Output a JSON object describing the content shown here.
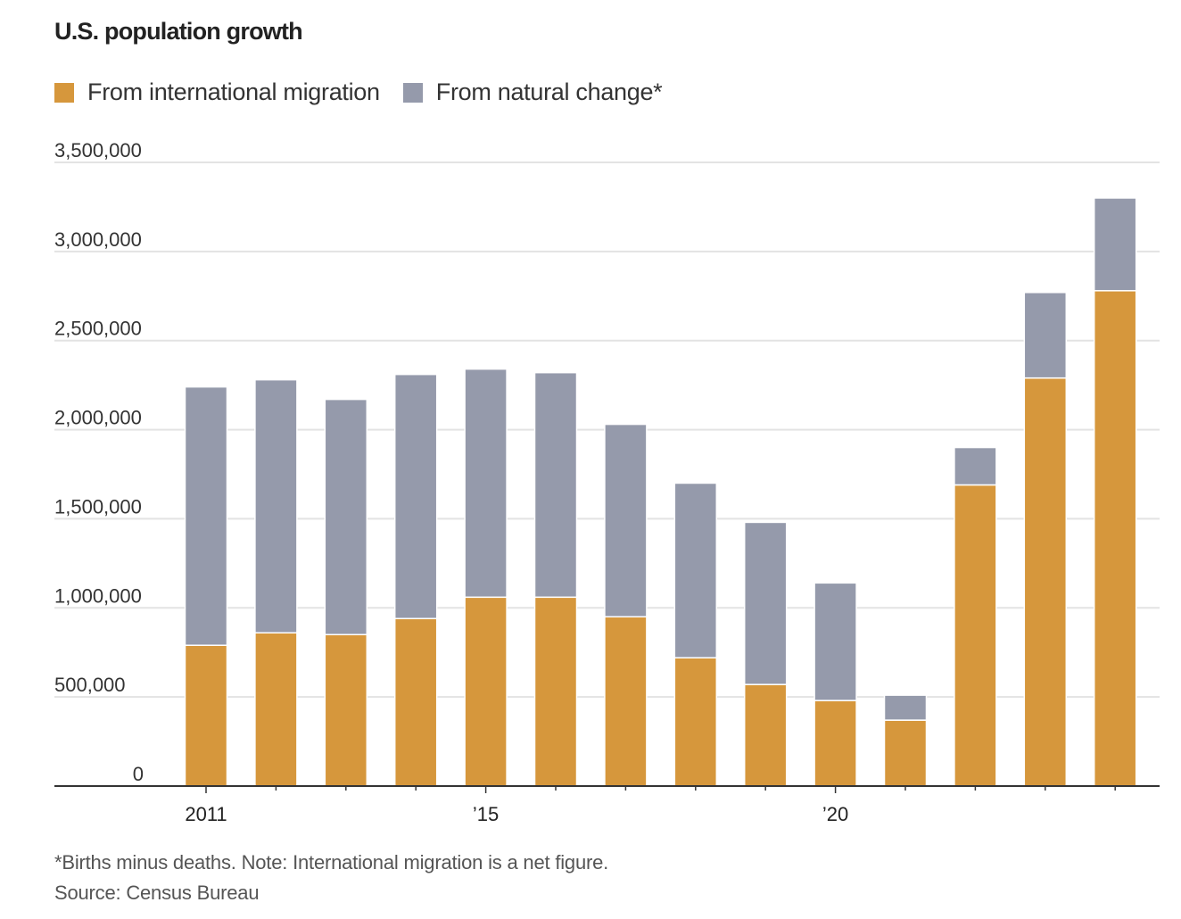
{
  "title": "U.S. population growth",
  "legend": [
    {
      "label": "From international migration",
      "color": "#d6973c"
    },
    {
      "label": "From natural change*",
      "color": "#959aab"
    }
  ],
  "footnote": "*Births minus deaths. Note: International migration is a net figure.",
  "source": "Source: Census Bureau",
  "chart_data": {
    "type": "bar",
    "stacked": true,
    "title": "U.S. population growth",
    "xlabel": "",
    "ylabel": "",
    "ylim": [
      0,
      3500000
    ],
    "yticks": [
      0,
      500000,
      1000000,
      1500000,
      2000000,
      2500000,
      3000000,
      3500000
    ],
    "ytick_labels": [
      "0",
      "500,000",
      "1,000,000",
      "1,500,000",
      "2,000,000",
      "2,500,000",
      "3,000,000",
      "3,500,000"
    ],
    "categories": [
      "2011",
      "2012",
      "2013",
      "2014",
      "2015",
      "2016",
      "2017",
      "2018",
      "2019",
      "2020",
      "2021",
      "2022",
      "2023",
      "2024"
    ],
    "xtick_labels": [
      {
        "category": "2011",
        "label": "2011"
      },
      {
        "category": "2015",
        "label": "’15"
      },
      {
        "category": "2020",
        "label": "’20"
      }
    ],
    "series": [
      {
        "name": "From international migration",
        "color": "#d6973c",
        "values": [
          790000,
          860000,
          850000,
          940000,
          1060000,
          1060000,
          950000,
          720000,
          570000,
          480000,
          370000,
          1690000,
          2290000,
          2780000
        ]
      },
      {
        "name": "From natural change*",
        "color": "#959aab",
        "values": [
          1450000,
          1420000,
          1320000,
          1370000,
          1280000,
          1260000,
          1080000,
          980000,
          910000,
          660000,
          140000,
          210000,
          480000,
          520000
        ]
      }
    ],
    "grid": true,
    "legend_position": "top-left"
  }
}
